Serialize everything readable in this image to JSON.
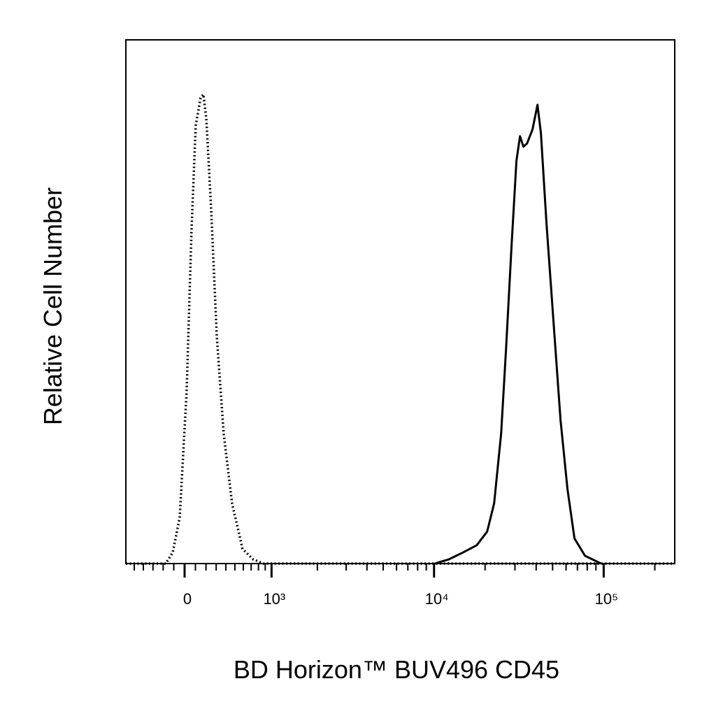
{
  "chart_data": {
    "type": "line",
    "xlabel": "BD Horizon™ BUV496 CD45",
    "ylabel": "Relative Cell Number",
    "xscale": "biexponential",
    "xlim": [
      -600,
      262144
    ],
    "ylim": [
      0,
      100
    ],
    "xticks": [
      0,
      {
        "value": 1000,
        "label": "10³"
      },
      {
        "value": 10000,
        "label": "10⁴"
      },
      {
        "value": 100000,
        "label": "10⁵"
      }
    ],
    "xminorticks": [
      -500,
      -400,
      -300,
      -200,
      -100,
      100,
      200,
      300,
      400,
      500,
      600,
      700,
      800,
      900,
      2000,
      3000,
      4000,
      5000,
      6000,
      7000,
      8000,
      9000,
      20000,
      30000,
      40000,
      50000,
      60000,
      70000,
      80000,
      90000,
      200000
    ],
    "series": [
      {
        "color": "#000000",
        "style": "dotted",
        "x": [
          -600,
          -176,
          -110,
          -45,
          19,
          64,
          103,
          149,
          175,
          203,
          250,
          306,
          377,
          468,
          591,
          727,
          876,
          262144
        ],
        "values": [
          0,
          0,
          2.1,
          8.8,
          32.8,
          63.6,
          83.6,
          88.9,
          89.6,
          84.9,
          67.6,
          43.5,
          24.8,
          11.5,
          2.8,
          0.8,
          0,
          0
        ]
      },
      {
        "color": "#000000",
        "style": "solid",
        "x": [
          10100,
          12215,
          14770,
          17860,
          20570,
          22620,
          24870,
          26580,
          28660,
          30620,
          32120,
          33670,
          35330,
          38090,
          40710,
          42680,
          46040,
          50620,
          55670,
          61180,
          67270,
          77540,
          96450
        ],
        "values": [
          0,
          0.8,
          2.1,
          3.5,
          6.1,
          11.5,
          24.8,
          40.9,
          60.9,
          76.9,
          81.6,
          79.6,
          80.2,
          82.9,
          87.6,
          82.2,
          64.9,
          46.2,
          27.5,
          14.2,
          4.8,
          1.5,
          0
        ]
      }
    ]
  }
}
